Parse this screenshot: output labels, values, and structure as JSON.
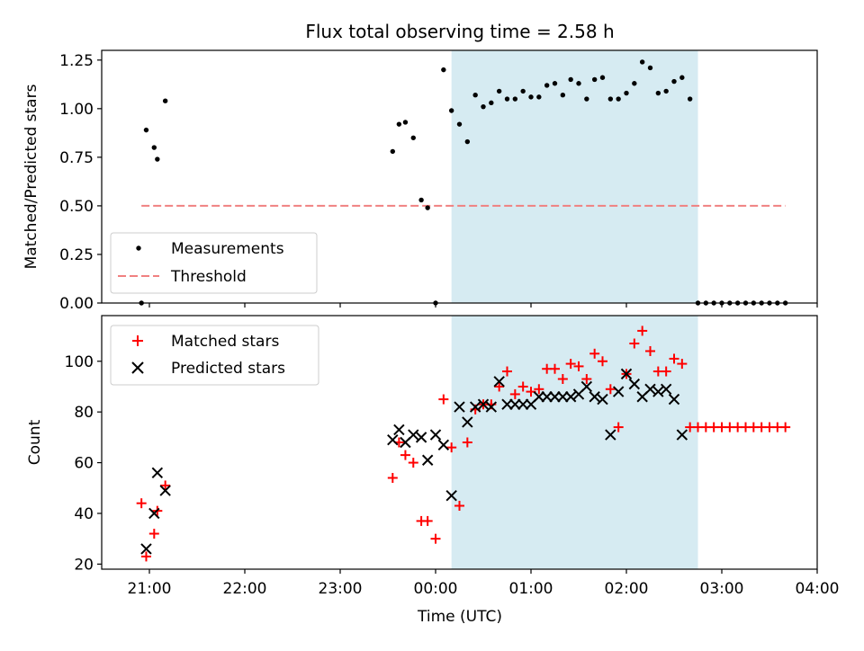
{
  "chart_data": {
    "title": "Flux total observing time = 2.58 h",
    "xlabel": "Time (UTC)",
    "x_ticks": [
      "21:00",
      "22:00",
      "23:00",
      "00:00",
      "01:00",
      "02:00",
      "03:00",
      "04:00"
    ],
    "colors": {
      "threshold": "#f08080",
      "shade": "#add8e6",
      "matched": "#ff0000",
      "predicted": "#000000",
      "measurement": "#000000"
    },
    "top_panel": {
      "type": "scatter",
      "ylabel": "Matched/Predicted stars",
      "ylim": [
        0,
        1.3
      ],
      "y_ticks": [
        "0.00",
        "0.25",
        "0.50",
        "0.75",
        "1.00",
        "1.25"
      ],
      "shaded_span": [
        "00:10",
        "02:45"
      ],
      "threshold": {
        "name": "Threshold",
        "value": 0.5,
        "x_start": "20:55",
        "x_end": "03:40"
      },
      "legend": [
        "Measurements",
        "Threshold"
      ],
      "measurements": {
        "name": "Measurements",
        "x": [
          "20:55",
          "20:58",
          "21:03",
          "21:05",
          "21:10",
          "23:33",
          "23:37",
          "23:41",
          "23:46",
          "23:51",
          "23:55",
          "00:00",
          "00:05",
          "00:10",
          "00:15",
          "00:20",
          "00:25",
          "00:30",
          "00:35",
          "00:40",
          "00:45",
          "00:50",
          "00:55",
          "01:00",
          "01:05",
          "01:10",
          "01:15",
          "01:20",
          "01:25",
          "01:30",
          "01:35",
          "01:40",
          "01:45",
          "01:50",
          "01:55",
          "02:00",
          "02:05",
          "02:10",
          "02:15",
          "02:20",
          "02:25",
          "02:30",
          "02:35",
          "02:40",
          "02:45",
          "02:50",
          "02:55",
          "03:00",
          "03:05",
          "03:10",
          "03:15",
          "03:20",
          "03:25",
          "03:30",
          "03:35",
          "03:40"
        ],
        "y": [
          0.0,
          0.89,
          0.8,
          0.74,
          1.04,
          0.78,
          0.92,
          0.93,
          0.85,
          0.53,
          0.49,
          0.0,
          1.2,
          0.99,
          0.92,
          0.83,
          1.07,
          1.01,
          1.03,
          1.09,
          1.05,
          1.05,
          1.09,
          1.06,
          1.06,
          1.12,
          1.13,
          1.07,
          1.15,
          1.13,
          1.05,
          1.15,
          1.16,
          1.05,
          1.05,
          1.08,
          1.13,
          1.24,
          1.21,
          1.08,
          1.09,
          1.14,
          1.16,
          1.05,
          0.0,
          0.0,
          0.0,
          0.0,
          0.0,
          0.0,
          0.0,
          0.0,
          0.0,
          0.0,
          0.0,
          0.0
        ]
      }
    },
    "bottom_panel": {
      "type": "scatter",
      "ylabel": "Count",
      "ylim": [
        18,
        118
      ],
      "y_ticks": [
        "20",
        "40",
        "60",
        "80",
        "100"
      ],
      "shaded_span": [
        "00:10",
        "02:45"
      ],
      "legend": [
        "Matched stars",
        "Predicted stars"
      ],
      "series": [
        {
          "name": "Matched stars",
          "marker": "plus",
          "x": [
            "20:55",
            "20:58",
            "21:03",
            "21:05",
            "21:10",
            "23:33",
            "23:37",
            "23:41",
            "23:46",
            "23:51",
            "23:55",
            "00:00",
            "00:05",
            "00:10",
            "00:15",
            "00:20",
            "00:25",
            "00:30",
            "00:35",
            "00:40",
            "00:45",
            "00:50",
            "00:55",
            "01:00",
            "01:05",
            "01:10",
            "01:15",
            "01:20",
            "01:25",
            "01:30",
            "01:35",
            "01:40",
            "01:45",
            "01:50",
            "01:55",
            "02:00",
            "02:05",
            "02:10",
            "02:15",
            "02:20",
            "02:25",
            "02:30",
            "02:35",
            "02:40",
            "02:45",
            "02:50",
            "02:55",
            "03:00",
            "03:05",
            "03:10",
            "03:15",
            "03:20",
            "03:25",
            "03:30",
            "03:35",
            "03:40"
          ],
          "y": [
            44,
            23,
            32,
            41,
            51,
            54,
            68,
            63,
            60,
            37,
            37,
            30,
            85,
            66,
            43,
            68,
            81,
            83,
            83,
            90,
            96,
            87,
            90,
            88,
            89,
            97,
            97,
            93,
            99,
            98,
            93,
            103,
            100,
            89,
            74,
            95,
            107,
            112,
            104,
            96,
            96,
            101,
            99,
            74,
            74,
            74,
            74,
            74,
            74,
            74,
            74,
            74,
            74,
            74,
            74,
            74
          ]
        },
        {
          "name": "Predicted stars",
          "marker": "x",
          "x": [
            "20:58",
            "21:03",
            "21:05",
            "21:10",
            "23:33",
            "23:37",
            "23:41",
            "23:46",
            "23:51",
            "23:55",
            "00:00",
            "00:05",
            "00:10",
            "00:15",
            "00:20",
            "00:25",
            "00:30",
            "00:35",
            "00:40",
            "00:45",
            "00:50",
            "00:55",
            "01:00",
            "01:05",
            "01:10",
            "01:15",
            "01:20",
            "01:25",
            "01:30",
            "01:35",
            "01:40",
            "01:45",
            "01:50",
            "01:55",
            "02:00",
            "02:05",
            "02:10",
            "02:15",
            "02:20",
            "02:25",
            "02:30",
            "02:35",
            "02:40",
            "02:45"
          ],
          "y": [
            26,
            40,
            56,
            49,
            69,
            73,
            68,
            71,
            70,
            61,
            71,
            67,
            47,
            82,
            76,
            82,
            83,
            82,
            92,
            83,
            83,
            83,
            83,
            86,
            86,
            86,
            86,
            86,
            87,
            90,
            86,
            85,
            71,
            88,
            95,
            91,
            86,
            89,
            88,
            89,
            85,
            71,
            null,
            null
          ]
        }
      ]
    }
  }
}
